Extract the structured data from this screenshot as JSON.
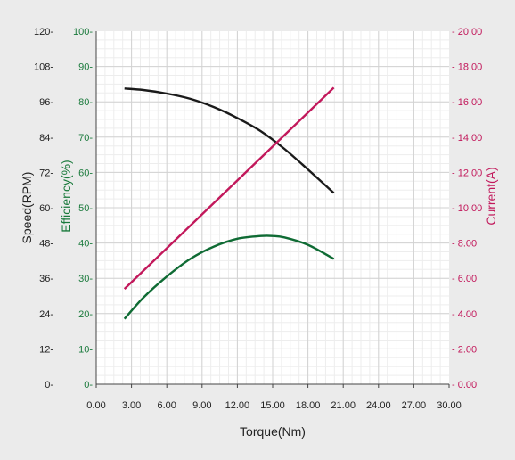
{
  "chart_data": {
    "type": "line",
    "xlabel": "Torque(Nm)",
    "xlim": [
      0,
      30
    ],
    "xticks": [
      "0.00",
      "3.00",
      "6.00",
      "9.00",
      "12.00",
      "15.00",
      "18.00",
      "21.00",
      "24.00",
      "27.00",
      "30.00"
    ],
    "axes": {
      "speed": {
        "label": "Speed(RPM)",
        "range": [
          0,
          120
        ],
        "color": "#222222",
        "ticks": [
          "0",
          "12",
          "24",
          "36",
          "48",
          "60",
          "72",
          "84",
          "96",
          "108",
          "120"
        ]
      },
      "efficiency": {
        "label": "Efficiency(%)",
        "range": [
          0,
          100
        ],
        "color": "#1a7a3c",
        "ticks": [
          "0",
          "10",
          "20",
          "30",
          "40",
          "50",
          "60",
          "70",
          "80",
          "90",
          "100"
        ]
      },
      "current": {
        "label": "Current(A)",
        "range": [
          0,
          20
        ],
        "color": "#c2185b",
        "ticks": [
          "0.00",
          "2.00",
          "4.00",
          "6.00",
          "8.00",
          "10.00",
          "12.00",
          "14.00",
          "16.00",
          "18.00",
          "20.00"
        ]
      }
    },
    "grid": true,
    "series": [
      {
        "axis": "speed",
        "color": "#1a1a1a",
        "x": [
          2.4,
          4,
          6,
          8,
          10,
          12,
          14,
          16,
          18,
          20.2
        ],
        "y": [
          100.5,
          100,
          98.8,
          97,
          94.2,
          90.5,
          86,
          80,
          73,
          65
        ]
      },
      {
        "axis": "efficiency",
        "color": "#0f6b34",
        "x": [
          2.4,
          4,
          6,
          8,
          10,
          12,
          14,
          15,
          16,
          18,
          20.2
        ],
        "y": [
          18.5,
          24.5,
          30.5,
          35.5,
          39,
          41.2,
          42,
          42,
          41.6,
          39.5,
          35.5
        ]
      },
      {
        "axis": "current",
        "color": "#c2185b",
        "x": [
          2.4,
          20.2
        ],
        "y": [
          5.4,
          16.8
        ]
      }
    ]
  }
}
